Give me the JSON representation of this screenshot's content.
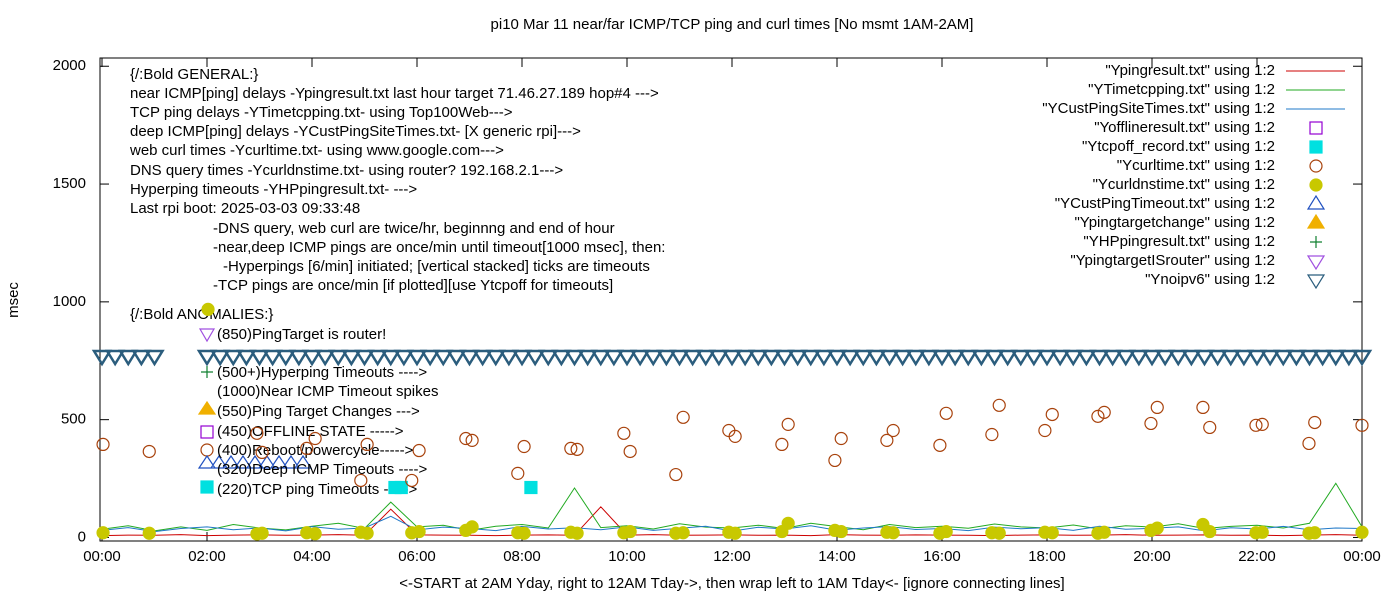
{
  "chart_data": {
    "type": "scatter",
    "title": "pi10 Mar 11  near/far ICMP/TCP ping and curl times [No msmt 1AM-2AM]",
    "x_label": "<-START at 2AM Yday, right to 12AM Tday->, then wrap left to 1AM Tday<- [ignore connecting lines]",
    "y_label": "msec",
    "xlim": [
      0,
      24
    ],
    "ylim": [
      -15,
      2035
    ],
    "yticks": [
      0,
      500,
      1000,
      1500,
      2000
    ],
    "xticks": [
      {
        "value": 0,
        "label": "00:00"
      },
      {
        "value": 2,
        "label": "02:00"
      },
      {
        "value": 4,
        "label": "04:00"
      },
      {
        "value": 6,
        "label": "06:00"
      },
      {
        "value": 8,
        "label": "08:00"
      },
      {
        "value": 10,
        "label": "10:00"
      },
      {
        "value": 12,
        "label": "12:00"
      },
      {
        "value": 14,
        "label": "14:00"
      },
      {
        "value": 16,
        "label": "16:00"
      },
      {
        "value": 18,
        "label": "18:00"
      },
      {
        "value": 20,
        "label": "20:00"
      },
      {
        "value": 22,
        "label": "22:00"
      },
      {
        "value": 24,
        "label": "00:00"
      }
    ],
    "grid": false,
    "legend_position": "top-right",
    "x": [
      0,
      0.5,
      1,
      1.5,
      2,
      2.5,
      3,
      3.5,
      4,
      4.5,
      5,
      5.5,
      6,
      6.5,
      7,
      7.5,
      8,
      8.5,
      9,
      9.5,
      10,
      10.5,
      11,
      11.5,
      12,
      12.5,
      13,
      13.5,
      14,
      14.5,
      15,
      15.5,
      16,
      16.5,
      17,
      17.5,
      18,
      18.5,
      19,
      19.5,
      20,
      20.5,
      21,
      21.5,
      22,
      22.5,
      23,
      23.5,
      24
    ],
    "series": [
      {
        "name": "\"Ypingresult.txt\" using 1:2",
        "color": "#cc0000",
        "marker": "line",
        "values": [
          8,
          10,
          9,
          12,
          8,
          10,
          11,
          9,
          10,
          12,
          9,
          120,
          11,
          10,
          9,
          8,
          10,
          11,
          9,
          130,
          10,
          12,
          9,
          10,
          11,
          9,
          10,
          8,
          12,
          10,
          9,
          11,
          10,
          9,
          8,
          10,
          11,
          9,
          10,
          12,
          9,
          10,
          11,
          9,
          10,
          8,
          10,
          12,
          9
        ]
      },
      {
        "name": "\"YTimetcpping.txt\" using 1:2",
        "color": "#22aa22",
        "marker": "line",
        "values": [
          35,
          50,
          28,
          45,
          30,
          55,
          40,
          32,
          48,
          60,
          38,
          150,
          45,
          52,
          30,
          48,
          55,
          40,
          210,
          42,
          50,
          36,
          58,
          44,
          40,
          52,
          38,
          60,
          46,
          33,
          55,
          42,
          48,
          39,
          57,
          45,
          40,
          53,
          36,
          50,
          44,
          58,
          38,
          47,
          52,
          40,
          60,
          230,
          45
        ]
      },
      {
        "name": "\"YCustPingSiteTimes.txt\" using 1:2",
        "color": "#1f78c8",
        "marker": "line",
        "values": [
          30,
          42,
          25,
          38,
          45,
          33,
          40,
          28,
          46,
          35,
          40,
          90,
          32,
          44,
          38,
          29,
          47,
          36,
          41,
          33,
          45,
          30,
          39,
          48,
          27,
          43,
          36,
          50,
          31,
          40,
          46,
          34,
          38,
          29,
          44,
          37,
          42,
          30,
          48,
          35,
          39,
          45,
          28,
          41,
          36,
          47,
          33,
          40,
          38
        ]
      },
      {
        "name": "\"Yofflineresult.txt\" using 1:2",
        "color": "#9400d3",
        "marker": "square-open"
      },
      {
        "name": "\"Ytcpoff_record.txt\" using 1:2",
        "color": "#00e0e0",
        "marker": "square",
        "x": [
          5.58,
          5.7,
          8.17
        ],
        "values": [
          212,
          212,
          212
        ]
      },
      {
        "name": "\"Ycurltime.txt\" using 1:2",
        "color": "#a8420c",
        "marker": "circle-open",
        "x": [
          0.02,
          0.9,
          2.95,
          3.05,
          3.9,
          4.06,
          4.93,
          5.05,
          5.9,
          6.04,
          6.93,
          7.05,
          7.92,
          8.04,
          8.93,
          9.05,
          9.94,
          10.06,
          10.93,
          11.07,
          11.94,
          12.06,
          12.95,
          13.07,
          13.96,
          14.08,
          14.95,
          15.07,
          15.96,
          16.08,
          16.95,
          17.09,
          17.96,
          18.1,
          18.97,
          19.09,
          19.98,
          20.1,
          20.97,
          21.1,
          21.98,
          22.1,
          22.99,
          23.1,
          24
        ],
        "values": [
          395,
          365,
          442,
          361,
          378,
          420,
          242,
          395,
          242,
          369,
          420,
          412,
          272,
          386,
          378,
          374,
          442,
          365,
          267,
          510,
          454,
          429,
          395,
          480,
          327,
          420,
          412,
          454,
          391,
          527,
          437,
          561,
          454,
          522,
          514,
          531,
          484,
          552,
          552,
          467,
          476,
          480,
          399,
          488,
          476
        ]
      },
      {
        "name": "\"Ycurldnstime.txt\" using 1:2",
        "color": "#c8c800",
        "marker": "circle",
        "x": [
          0.02,
          0.9,
          2.02,
          2.95,
          3.05,
          3.9,
          4.06,
          4.93,
          5.05,
          5.9,
          6.04,
          6.93,
          7.05,
          7.92,
          8.04,
          8.93,
          9.05,
          9.94,
          10.06,
          10.93,
          11.07,
          11.94,
          12.06,
          12.95,
          13.07,
          13.96,
          14.08,
          14.95,
          15.07,
          15.96,
          16.08,
          16.95,
          17.09,
          17.96,
          18.1,
          18.97,
          19.09,
          19.98,
          20.1,
          20.97,
          21.1,
          21.98,
          22.1,
          22.99,
          23.1,
          24
        ],
        "values": [
          20,
          18,
          968,
          15,
          18,
          20,
          16,
          22,
          18,
          20,
          25,
          30,
          45,
          20,
          18,
          22,
          18,
          20,
          25,
          18,
          20,
          22,
          18,
          25,
          60,
          30,
          25,
          22,
          20,
          18,
          25,
          20,
          18,
          22,
          20,
          18,
          22,
          30,
          40,
          55,
          25,
          20,
          22,
          18,
          20,
          22
        ]
      },
      {
        "name": "\"YCustPingTimeout.txt\" using 1:2",
        "color": "#2050c0",
        "marker": "triangle-open"
      },
      {
        "name": "\"Ypingtargetchange\" using 1:2",
        "color": "#f0b000",
        "marker": "triangle"
      },
      {
        "name": "\"YHPpingresult.txt\" using 1:2",
        "color": "#108030",
        "marker": "plus"
      },
      {
        "name": "\"YpingtargetISrouter\" using 1:2",
        "color": "#a050e0",
        "marker": "triangle-down-open"
      },
      {
        "name": "\"Ynoipv6\" using 1:2",
        "color": "#2b5d7d",
        "marker": "triangle-down-open",
        "x": [
          0,
          0.25,
          0.5,
          0.75,
          1,
          2,
          2.25,
          2.5,
          2.75,
          3,
          3.25,
          3.5,
          3.75,
          4,
          4.25,
          4.5,
          4.75,
          5,
          5.25,
          5.5,
          5.75,
          6,
          6.25,
          6.5,
          6.75,
          7,
          7.25,
          7.5,
          7.75,
          8,
          8.25,
          8.5,
          8.75,
          9,
          9.25,
          9.5,
          9.75,
          10,
          10.25,
          10.5,
          10.75,
          11,
          11.25,
          11.5,
          11.75,
          12,
          12.25,
          12.5,
          12.75,
          13,
          13.25,
          13.5,
          13.75,
          14,
          14.25,
          14.5,
          14.75,
          15,
          15.25,
          15.5,
          15.75,
          16,
          16.25,
          16.5,
          16.75,
          17,
          17.25,
          17.5,
          17.75,
          18,
          18.25,
          18.5,
          18.75,
          19,
          19.25,
          19.5,
          19.75,
          20,
          20.25,
          20.5,
          20.75,
          21,
          21.25,
          21.5,
          21.75,
          22,
          22.25,
          22.5,
          22.75,
          23,
          23.25,
          23.5,
          23.75,
          24
        ],
        "values": [
          770,
          770,
          770,
          770,
          770,
          770,
          770,
          770,
          770,
          770,
          770,
          770,
          770,
          770,
          770,
          770,
          770,
          770,
          770,
          770,
          770,
          770,
          770,
          770,
          770,
          770,
          770,
          770,
          770,
          770,
          770,
          770,
          770,
          770,
          770,
          770,
          770,
          770,
          770,
          770,
          770,
          770,
          770,
          770,
          770,
          770,
          770,
          770,
          770,
          770,
          770,
          770,
          770,
          770,
          770,
          770,
          770,
          770,
          770,
          770,
          770,
          770,
          770,
          770,
          770,
          770,
          770,
          770,
          770,
          770,
          770,
          770,
          770,
          770,
          770,
          770,
          770,
          770,
          770,
          770,
          770,
          770,
          770,
          770,
          770,
          770,
          770,
          770,
          770,
          770,
          770,
          770,
          770,
          770
        ]
      }
    ],
    "annotations": [
      "{/:Bold GENERAL:}",
      "near ICMP[ping] delays -Ypingresult.txt last hour target 71.46.27.189 hop#4 --->",
      "TCP ping delays -YTimetcpping.txt- using Top100Web--->",
      "deep ICMP[ping] delays -YCustPingSiteTimes.txt- [X generic rpi]--->",
      "web curl times -Ycurltime.txt- using www.google.com--->",
      "DNS query times -Ycurldnstime.txt- using router? 192.168.2.1--->",
      "Hyperping timeouts -YHPpingresult.txt- --->",
      "Last rpi boot: 2025-03-03 09:33:48",
      "-DNS query, web curl are twice/hr, beginnng and end of hour",
      "-near,deep ICMP pings are once/min until timeout[1000 msec], then:",
      "-Hyperpings [6/min] initiated; [vertical stacked] ticks are timeouts",
      "-TCP pings are once/min [if plotted][use Ytcpoff for timeouts]",
      "{/:Bold ANOMALIES:}",
      "(850)PingTarget is router!",
      "(500+)Hyperping Timeouts ---->",
      "(1000)Near ICMP Timeout spikes",
      "(550)Ping Target Changes --->",
      "(450)OFFLINE STATE ----->",
      "(400)Reboot/powercycle----->",
      "(320)Deep ICMP Timeouts ---->",
      "(220)TCP ping Timeouts ----->"
    ]
  }
}
